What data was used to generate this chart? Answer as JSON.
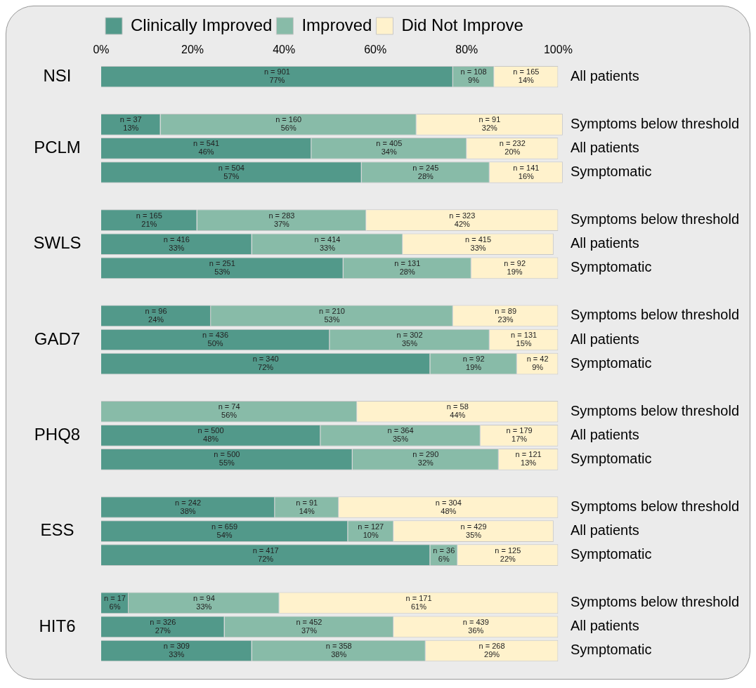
{
  "chart_data": {
    "type": "bar",
    "orientation": "horizontal",
    "stacked": true,
    "categories": [
      "All patients",
      null,
      "Symptoms below threshold",
      "All patients",
      "Symptomatic",
      null,
      "Symptoms below threshold",
      "All patients",
      "Symptomatic",
      null,
      "Symptoms below threshold",
      "All patients",
      "Symptomatic",
      null,
      "Symptoms below threshold",
      "All patients",
      "Symptomatic",
      null,
      "Symptoms below threshold",
      "All patients",
      "Symptomatic",
      null,
      "Symptoms below threshold",
      "All patients",
      "Symptomatic"
    ],
    "series": [
      {
        "name": "Clinically Improved",
        "color": "#52998a",
        "values": [
          77,
          null,
          13,
          46,
          57,
          null,
          21,
          33,
          53,
          null,
          24,
          50,
          72,
          null,
          0,
          48,
          55,
          null,
          38,
          54,
          72,
          null,
          6,
          27,
          33
        ],
        "value_labels": [
          "n = 901\n77%",
          null,
          "n = 37\n13%",
          "n = 541\n46%",
          "n = 504\n57%",
          null,
          "n = 165\n21%",
          "n = 416\n33%",
          "n = 251\n53%",
          null,
          "n = 96\n24%",
          "n = 436\n50%",
          "n = 340\n72%",
          null,
          null,
          "n = 500\n48%",
          "n = 500\n55%",
          null,
          "n = 242\n38%",
          "n = 659\n54%",
          "n = 417\n72%",
          null,
          "n = 17\n6%",
          "n = 326\n27%",
          "n = 309\n33%"
        ]
      },
      {
        "name": "Improved",
        "color": "#88bba8",
        "values": [
          9,
          null,
          56,
          34,
          28,
          null,
          37,
          33,
          28,
          null,
          53,
          35,
          19,
          null,
          56,
          35,
          32,
          null,
          14,
          10,
          6,
          null,
          33,
          37,
          38
        ],
        "value_labels": [
          "n = 108\n9%",
          null,
          "n = 160\n56%",
          "n = 405\n34%",
          "n = 245\n28%",
          null,
          "n = 283\n37%",
          "n = 414\n33%",
          "n = 131\n28%",
          null,
          "n = 210\n53%",
          "n = 302\n35%",
          "n = 92\n19%",
          null,
          "n = 74\n56%",
          "n = 364\n35%",
          "n = 290\n32%",
          null,
          "n = 91\n14%",
          "n = 127\n10%",
          "n = 36\n6%",
          null,
          "n = 94\n33%",
          "n = 452\n37%",
          "n = 358\n38%"
        ]
      },
      {
        "name": "Did Not Improve",
        "color": "#fff2cc",
        "values": [
          14,
          null,
          32,
          20,
          16,
          null,
          42,
          33,
          19,
          null,
          23,
          15,
          9,
          null,
          44,
          17,
          13,
          null,
          48,
          35,
          22,
          null,
          61,
          36,
          29
        ],
        "value_labels": [
          "n = 165\n14%",
          null,
          "n = 91\n32%",
          "n = 232\n20%",
          "n = 141\n16%",
          null,
          "n = 323\n42%",
          "n = 415\n33%",
          "n = 92\n19%",
          null,
          "n = 89\n23%",
          "n = 131\n15%",
          "n = 42\n9%",
          null,
          "n = 58\n44%",
          "n = 179\n17%",
          "n = 121\n13%",
          null,
          "n = 304\n48%",
          "n = 429\n35%",
          "n = 125\n22%",
          null,
          "n = 171\n61%",
          "n = 439\n36%",
          "n = 268\n29%"
        ]
      }
    ],
    "xlim": [
      0,
      101
    ],
    "xticks": [
      {
        "value": 0,
        "label": "0%"
      },
      {
        "value": 20,
        "label": "20%"
      },
      {
        "value": 40,
        "label": "40%"
      },
      {
        "value": 60,
        "label": "60%"
      },
      {
        "value": 80,
        "label": "80%"
      },
      {
        "value": 100,
        "label": "100%"
      }
    ],
    "annotations": [
      "NSI",
      "PCLM",
      "SWLS",
      "GAD7",
      "PHQ8",
      "ESS",
      "HIT6"
    ],
    "grid": false,
    "legend": "top left"
  }
}
